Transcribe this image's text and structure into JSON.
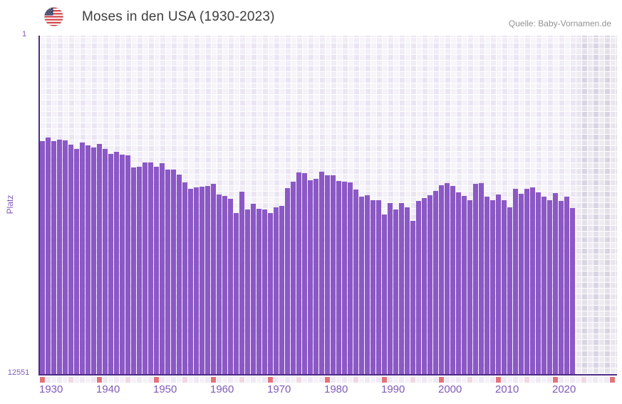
{
  "header": {
    "title": "Moses in den USA (1930-2023)",
    "source": "Quelle: Baby-Vornamen.de",
    "flag_icon": "us-flag-icon"
  },
  "y_axis": {
    "label": "Platz",
    "top_tick": "1",
    "bottom_tick": "12551",
    "min": 1,
    "max": 12551,
    "inverted": true
  },
  "x_axis": {
    "ticks": [
      "1930",
      "1940",
      "1950",
      "1960",
      "1970",
      "1980",
      "1990",
      "2000",
      "2010",
      "2020"
    ],
    "start_year": 1930,
    "end_year": 2023,
    "strip_end_year": 2030
  },
  "colors": {
    "bar": "#8b58c5",
    "axis": "#4d2b85",
    "tick_label": "#7f5ab8",
    "title_text": "#3e3e3e",
    "source_text": "#929292",
    "plot_background": "#ebe5f3",
    "future_background": "#d9d4e2",
    "strip_decade_marker": "#e2737b",
    "strip_half_decade_marker": "#f1d8e2"
  },
  "chart_data": {
    "type": "bar",
    "title": "Moses in den USA (1930-2023)",
    "xlabel": "",
    "ylabel": "Platz",
    "ylim": [
      1,
      12551
    ],
    "y_inverted": true,
    "grid": true,
    "legend": "none",
    "x": [
      1930,
      1931,
      1932,
      1933,
      1934,
      1935,
      1936,
      1937,
      1938,
      1939,
      1940,
      1941,
      1942,
      1943,
      1944,
      1945,
      1946,
      1947,
      1948,
      1949,
      1950,
      1951,
      1952,
      1953,
      1954,
      1955,
      1956,
      1957,
      1958,
      1959,
      1960,
      1961,
      1962,
      1963,
      1964,
      1965,
      1966,
      1967,
      1968,
      1969,
      1970,
      1971,
      1972,
      1973,
      1974,
      1975,
      1976,
      1977,
      1978,
      1979,
      1980,
      1981,
      1982,
      1983,
      1984,
      1985,
      1986,
      1987,
      1988,
      1989,
      1990,
      1991,
      1992,
      1993,
      1994,
      1995,
      1996,
      1997,
      1998,
      1999,
      2000,
      2001,
      2002,
      2003,
      2004,
      2005,
      2006,
      2007,
      2008,
      2009,
      2010,
      2011,
      2012,
      2013,
      2014,
      2015,
      2016,
      2017,
      2018,
      2019,
      2020,
      2021,
      2022,
      2023
    ],
    "values": [
      3920,
      3770,
      3920,
      3850,
      3880,
      4030,
      4190,
      3970,
      4070,
      4140,
      4020,
      4190,
      4390,
      4300,
      4410,
      4440,
      4890,
      4850,
      4700,
      4700,
      4850,
      4740,
      4960,
      4960,
      5160,
      5440,
      5680,
      5620,
      5600,
      5580,
      5500,
      5900,
      5950,
      6050,
      6580,
      5790,
      6450,
      6230,
      6420,
      6450,
      6580,
      6380,
      6320,
      5660,
      5410,
      5060,
      5110,
      5370,
      5310,
      5040,
      5170,
      5180,
      5400,
      5420,
      5440,
      5710,
      5980,
      5920,
      6100,
      6100,
      6640,
      6210,
      6450,
      6200,
      6380,
      6870,
      6120,
      6030,
      5920,
      5770,
      5550,
      5480,
      5570,
      5810,
      5940,
      6100,
      5500,
      5470,
      5960,
      6100,
      5900,
      6100,
      6360,
      5690,
      5870,
      5680,
      5640,
      5800,
      5980,
      6110,
      5830,
      6120,
      5970,
      6400
    ]
  }
}
